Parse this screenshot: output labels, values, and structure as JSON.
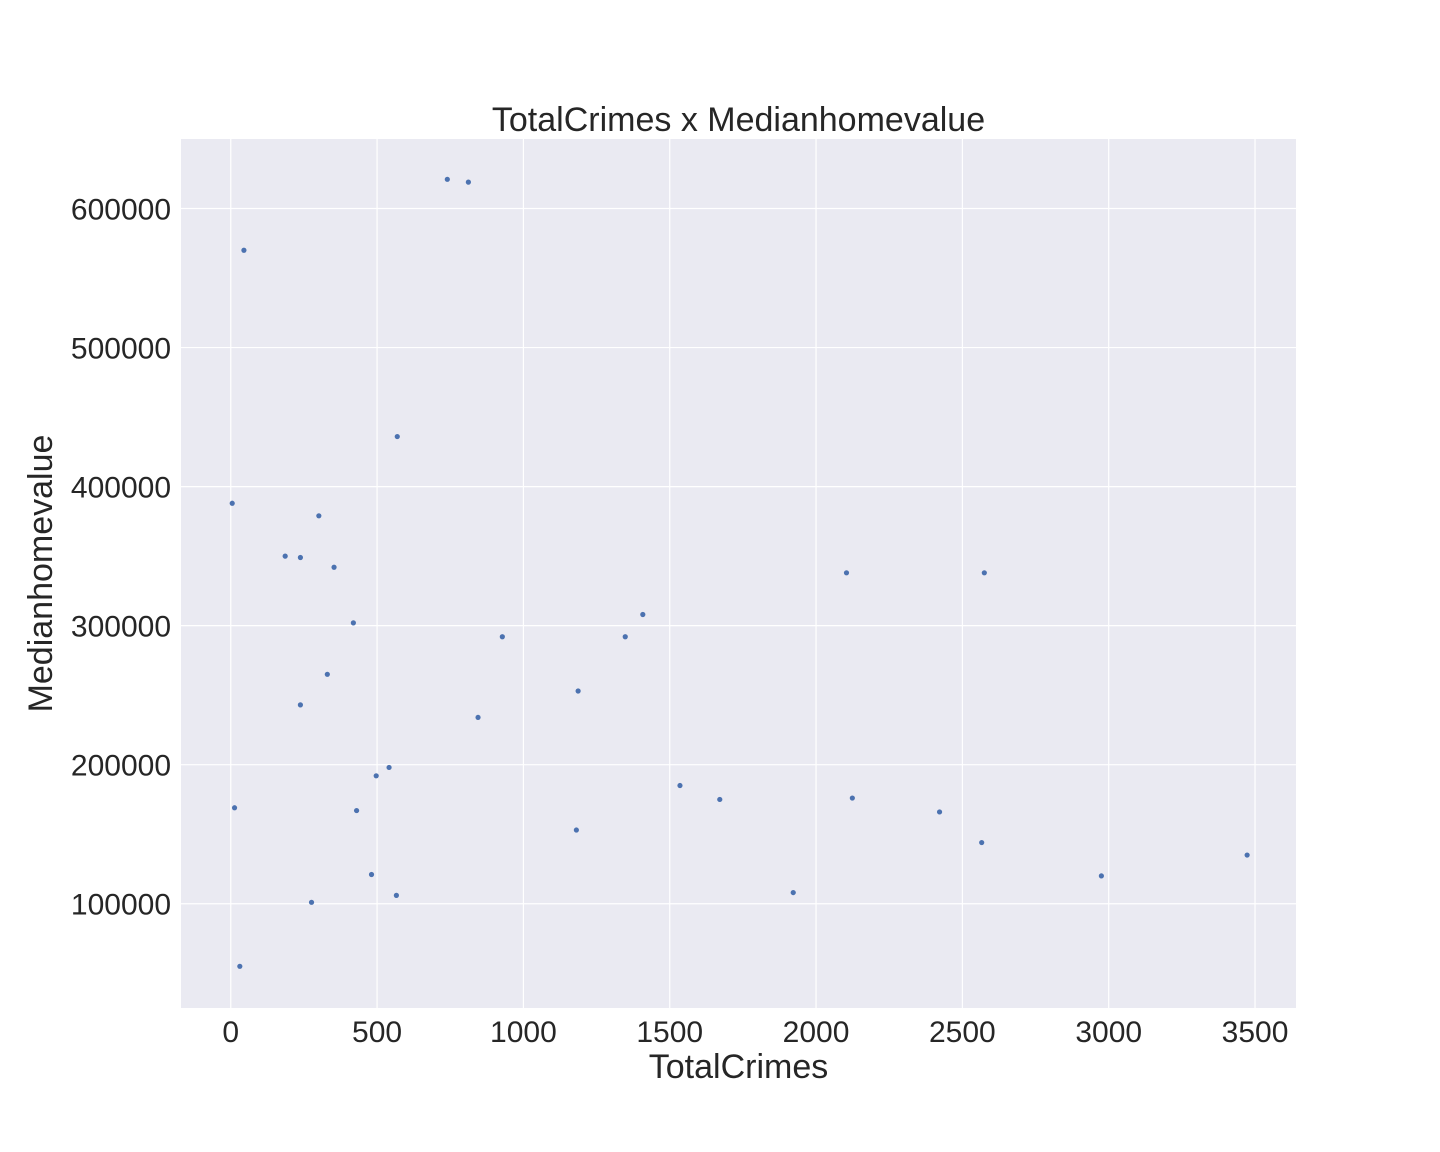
{
  "chart_data": {
    "type": "scatter",
    "title": "TotalCrimes x Medianhomevalue",
    "xlabel": "TotalCrimes",
    "ylabel": "Medianhomevalue",
    "xlim": [
      -170,
      3640
    ],
    "ylim": [
      25000,
      650000
    ],
    "xticks": [
      0,
      500,
      1000,
      1500,
      2000,
      2500,
      3000,
      3500
    ],
    "yticks": [
      100000,
      200000,
      300000,
      400000,
      500000,
      600000
    ],
    "grid": true,
    "marker_color": "#4c72b0",
    "background_color": "#eaeaf2",
    "grid_color": "#ffffff",
    "points": [
      {
        "x": 740,
        "y": 621000
      },
      {
        "x": 812,
        "y": 619000
      },
      {
        "x": 45,
        "y": 570000
      },
      {
        "x": 569,
        "y": 436000
      },
      {
        "x": 5,
        "y": 388000
      },
      {
        "x": 301,
        "y": 379000
      },
      {
        "x": 186,
        "y": 350000
      },
      {
        "x": 238,
        "y": 349000
      },
      {
        "x": 353,
        "y": 342000
      },
      {
        "x": 2104,
        "y": 338000
      },
      {
        "x": 2575,
        "y": 338000
      },
      {
        "x": 1408,
        "y": 308000
      },
      {
        "x": 419,
        "y": 302000
      },
      {
        "x": 928,
        "y": 292000
      },
      {
        "x": 1348,
        "y": 292000
      },
      {
        "x": 330,
        "y": 265000
      },
      {
        "x": 1187,
        "y": 253000
      },
      {
        "x": 238,
        "y": 243000
      },
      {
        "x": 845,
        "y": 234000
      },
      {
        "x": 541,
        "y": 198000
      },
      {
        "x": 497,
        "y": 192000
      },
      {
        "x": 1535,
        "y": 185000
      },
      {
        "x": 2124,
        "y": 176000
      },
      {
        "x": 1671,
        "y": 175000
      },
      {
        "x": 13,
        "y": 169000
      },
      {
        "x": 430,
        "y": 167000
      },
      {
        "x": 2422,
        "y": 166000
      },
      {
        "x": 1181,
        "y": 153000
      },
      {
        "x": 2566,
        "y": 144000
      },
      {
        "x": 3473,
        "y": 135000
      },
      {
        "x": 481,
        "y": 121000
      },
      {
        "x": 2975,
        "y": 120000
      },
      {
        "x": 1922,
        "y": 108000
      },
      {
        "x": 566,
        "y": 106000
      },
      {
        "x": 276,
        "y": 101000
      },
      {
        "x": 31,
        "y": 55000
      }
    ]
  }
}
